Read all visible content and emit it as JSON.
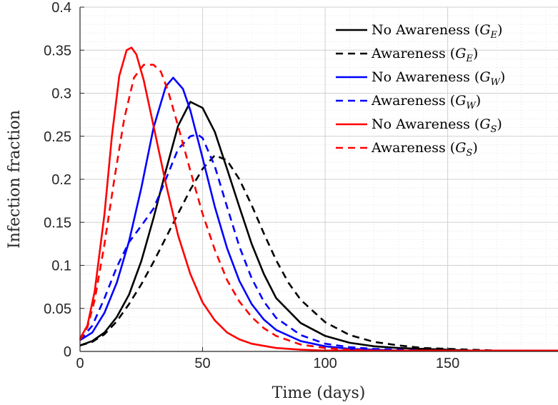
{
  "chart_data": {
    "type": "line",
    "title": "",
    "xlabel": "Time (days)",
    "ylabel": "Infection fraction",
    "xlim": [
      0,
      195
    ],
    "ylim": [
      0,
      0.4
    ],
    "xticks": [
      0,
      50,
      100,
      150
    ],
    "xtick_labels": [
      "0",
      "50",
      "100",
      "150"
    ],
    "yticks": [
      0,
      0.05,
      0.1,
      0.15,
      0.2,
      0.25,
      0.3,
      0.35,
      0.4
    ],
    "ytick_labels": [
      "0",
      "0.05",
      "0.1",
      "0.15",
      "0.2",
      "0.25",
      "0.3",
      "0.35",
      "0.4"
    ],
    "grid": true,
    "minor_grid": true,
    "legend_position": "top-right",
    "series": [
      {
        "name": "No Awareness (G_E)",
        "label_main": "No Awareness (",
        "label_var": "G",
        "label_sub": "E",
        "label_close": ")",
        "color": "#000000",
        "dash": "solid",
        "x": [
          0,
          5,
          10,
          15,
          20,
          25,
          30,
          35,
          40,
          45,
          50,
          55,
          60,
          65,
          70,
          75,
          80,
          90,
          100,
          110,
          120,
          130,
          140,
          150,
          160,
          170,
          180,
          195
        ],
        "y": [
          0.007,
          0.012,
          0.022,
          0.04,
          0.066,
          0.105,
          0.155,
          0.21,
          0.262,
          0.29,
          0.283,
          0.255,
          0.212,
          0.168,
          0.125,
          0.09,
          0.062,
          0.033,
          0.018,
          0.01,
          0.006,
          0.004,
          0.003,
          0.002,
          0.001,
          0.001,
          0.001,
          0.001
        ]
      },
      {
        "name": "Awareness (G_E)",
        "label_main": "Awareness (",
        "label_var": "G",
        "label_sub": "E",
        "label_close": ")",
        "color": "#000000",
        "dash": "dashed",
        "x": [
          0,
          5,
          10,
          15,
          20,
          25,
          30,
          35,
          40,
          45,
          50,
          55,
          60,
          65,
          70,
          75,
          80,
          85,
          90,
          100,
          110,
          120,
          130,
          140,
          150,
          160,
          170,
          180,
          195
        ],
        "y": [
          0.007,
          0.011,
          0.02,
          0.035,
          0.055,
          0.078,
          0.104,
          0.132,
          0.16,
          0.188,
          0.212,
          0.228,
          0.222,
          0.2,
          0.17,
          0.137,
          0.106,
          0.08,
          0.06,
          0.034,
          0.019,
          0.011,
          0.007,
          0.004,
          0.003,
          0.002,
          0.001,
          0.001,
          0.001
        ]
      },
      {
        "name": "No Awareness (G_W)",
        "label_main": "No Awareness (",
        "label_var": "G",
        "label_sub": "W",
        "label_close": ")",
        "color": "#0000ff",
        "dash": "solid",
        "x": [
          0,
          5,
          10,
          15,
          20,
          25,
          30,
          35,
          38,
          42,
          45,
          50,
          55,
          60,
          65,
          70,
          75,
          80,
          90,
          100,
          110,
          120,
          130,
          140,
          150,
          160,
          170,
          180,
          195
        ],
        "y": [
          0.013,
          0.022,
          0.045,
          0.08,
          0.128,
          0.19,
          0.26,
          0.308,
          0.318,
          0.305,
          0.28,
          0.225,
          0.168,
          0.12,
          0.082,
          0.055,
          0.037,
          0.025,
          0.012,
          0.006,
          0.003,
          0.002,
          0.001,
          0.001,
          0.001,
          0.001,
          0.001,
          0.001,
          0.001
        ]
      },
      {
        "name": "Awareness (G_W)",
        "label_main": "Awareness (",
        "label_var": "G",
        "label_sub": "W",
        "label_close": ")",
        "color": "#0000ff",
        "dash": "dashed",
        "x": [
          0,
          5,
          10,
          15,
          20,
          25,
          30,
          35,
          40,
          45,
          48,
          50,
          55,
          60,
          65,
          70,
          75,
          80,
          90,
          100,
          110,
          120,
          130,
          140,
          150,
          160,
          170,
          180,
          195
        ],
        "y": [
          0.013,
          0.03,
          0.062,
          0.098,
          0.127,
          0.146,
          0.166,
          0.2,
          0.235,
          0.25,
          0.252,
          0.248,
          0.215,
          0.168,
          0.122,
          0.085,
          0.058,
          0.039,
          0.019,
          0.009,
          0.005,
          0.003,
          0.002,
          0.001,
          0.001,
          0.001,
          0.001,
          0.001,
          0.001
        ]
      },
      {
        "name": "No Awareness (G_S)",
        "label_main": "No Awareness (",
        "label_var": "G",
        "label_sub": "S",
        "label_close": ")",
        "color": "#ff0000",
        "dash": "solid",
        "x": [
          0,
          3,
          6,
          10,
          13,
          16,
          19,
          21,
          23,
          26,
          30,
          35,
          40,
          45,
          50,
          55,
          60,
          65,
          70,
          80,
          90,
          100,
          110,
          120,
          130,
          140,
          150,
          160,
          170,
          180,
          195
        ],
        "y": [
          0.015,
          0.03,
          0.07,
          0.16,
          0.25,
          0.32,
          0.35,
          0.353,
          0.345,
          0.315,
          0.262,
          0.195,
          0.135,
          0.09,
          0.057,
          0.036,
          0.022,
          0.014,
          0.009,
          0.004,
          0.002,
          0.001,
          0.001,
          0.001,
          0.001,
          0.001,
          0.001,
          0.001,
          0.001,
          0.001,
          0.001
        ]
      },
      {
        "name": "Awareness (G_S)",
        "label_main": "Awareness (",
        "label_var": "G",
        "label_sub": "S",
        "label_close": ")",
        "color": "#ff0000",
        "dash": "dashed",
        "x": [
          0,
          3,
          6,
          10,
          14,
          18,
          22,
          26,
          30,
          33,
          36,
          40,
          45,
          50,
          55,
          60,
          65,
          70,
          75,
          80,
          90,
          100,
          110,
          120,
          130,
          140,
          150,
          160,
          170,
          180,
          195
        ],
        "y": [
          0.013,
          0.028,
          0.06,
          0.125,
          0.2,
          0.27,
          0.318,
          0.333,
          0.333,
          0.325,
          0.302,
          0.262,
          0.21,
          0.16,
          0.118,
          0.083,
          0.058,
          0.04,
          0.027,
          0.018,
          0.008,
          0.004,
          0.002,
          0.001,
          0.001,
          0.001,
          0.001,
          0.001,
          0.001,
          0.001,
          0.001
        ]
      }
    ]
  }
}
